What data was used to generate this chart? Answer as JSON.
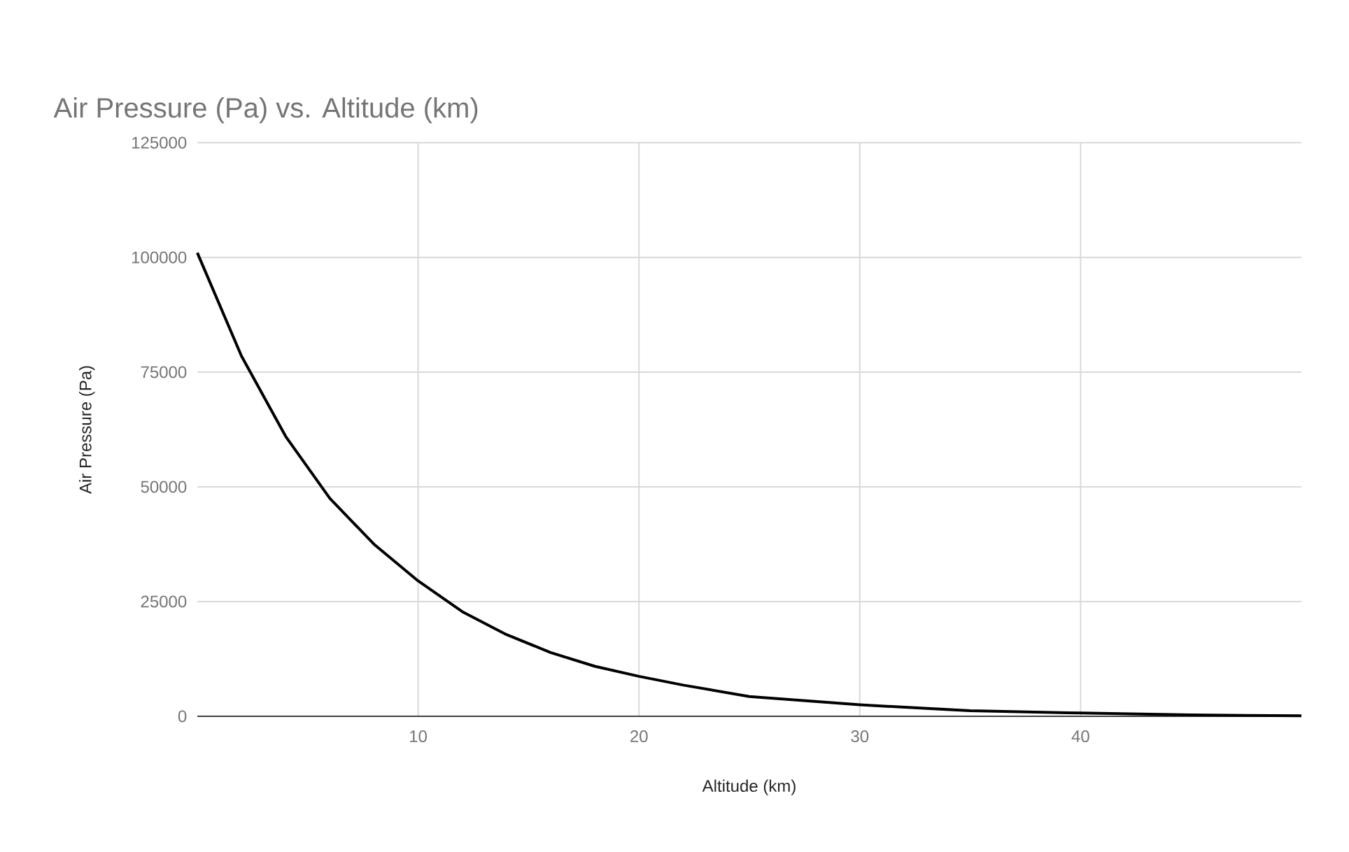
{
  "chart_data": {
    "type": "line",
    "title": "Air Pressure (Pa) vs. Altitude (km)",
    "xlabel": "Altitude (km)",
    "ylabel": "Air Pressure (Pa)",
    "x": [
      0,
      2,
      4,
      6,
      8,
      10,
      12,
      14,
      16,
      18,
      20,
      22,
      25,
      30,
      35,
      40,
      45,
      50
    ],
    "values": [
      101000,
      78500,
      61000,
      47500,
      37500,
      29500,
      22800,
      17800,
      13900,
      10900,
      8700,
      6800,
      4300,
      2500,
      1200,
      700,
      300,
      100
    ],
    "color": "#000000",
    "marker": "none",
    "line_style": "solid",
    "xlim": [
      0,
      50
    ],
    "ylim": [
      0,
      125000
    ],
    "xticks": [
      10,
      20,
      30,
      40
    ],
    "yticks": [
      0,
      25000,
      50000,
      75000,
      100000,
      125000
    ],
    "grid": true
  }
}
